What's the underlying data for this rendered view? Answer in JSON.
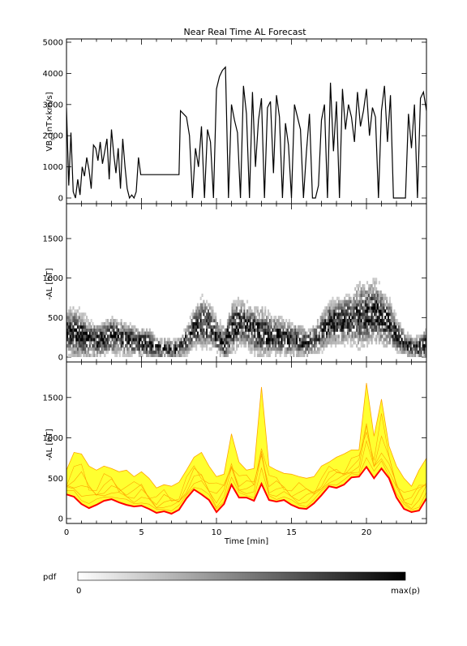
{
  "figure": {
    "title": "Near Real Time AL Forecast",
    "xlabel": "Time [min]",
    "xticks": [
      0,
      5,
      10,
      15,
      20
    ],
    "xlim": [
      0,
      24
    ],
    "colorbar": {
      "label": "pdf",
      "min_label": "0",
      "max_label": "max(p)"
    }
  },
  "chart_data": [
    {
      "type": "line",
      "panel": "top",
      "ylabel": "VB",
      "ylabel_sub": "s",
      "ylabel_unit": " [nT×km/s]",
      "ylim": [
        0,
        5000
      ],
      "yticks": [
        0,
        1000,
        2000,
        3000,
        4000,
        5000
      ],
      "series": [
        {
          "x": [
            0,
            0.15,
            0.3,
            0.45,
            0.6,
            0.75,
            0.9,
            1.05,
            1.2,
            1.35,
            1.5,
            1.65,
            1.8,
            1.95,
            2.1,
            2.25,
            2.4,
            2.55,
            2.7,
            2.85,
            3.0,
            3.15,
            3.3,
            3.45,
            3.6,
            3.75,
            3.9,
            4.05,
            4.2,
            4.35,
            4.5,
            4.65,
            4.8,
            4.95,
            5.1,
            5.25,
            5.4,
            5.55,
            5.7,
            5.85,
            6.0,
            6.5,
            7.0,
            7.5,
            7.6,
            7.8,
            8.0,
            8.2,
            8.4,
            8.6,
            8.8,
            9.0,
            9.2,
            9.4,
            9.6,
            9.8,
            10.0,
            10.2,
            10.4,
            10.6,
            10.8,
            11.0,
            11.2,
            11.4,
            11.6,
            11.8,
            12.0,
            12.2,
            12.4,
            12.6,
            12.8,
            13.0,
            13.2,
            13.4,
            13.6,
            13.8,
            14.0,
            14.2,
            14.4,
            14.6,
            14.8,
            15.0,
            15.2,
            15.4,
            15.6,
            15.8,
            16.0,
            16.2,
            16.4,
            16.6,
            16.8,
            17.0,
            17.2,
            17.4,
            17.6,
            17.8,
            18.0,
            18.2,
            18.4,
            18.6,
            18.8,
            19.0,
            19.2,
            19.4,
            19.6,
            19.8,
            20.0,
            20.2,
            20.4,
            20.6,
            20.8,
            21.0,
            21.2,
            21.4,
            21.6,
            21.8,
            22.0,
            22.2,
            22.4,
            22.6,
            22.8,
            23.0,
            23.2,
            23.4,
            23.6,
            23.8,
            24.0
          ],
          "y": [
            2900,
            400,
            2100,
            200,
            0,
            600,
            100,
            1000,
            700,
            1300,
            900,
            300,
            1700,
            1600,
            1200,
            1800,
            1100,
            1500,
            1900,
            600,
            2200,
            1400,
            800,
            1600,
            300,
            1900,
            1000,
            300,
            0,
            100,
            0,
            200,
            1300,
            750,
            750,
            750,
            750,
            750,
            750,
            750,
            750,
            750,
            750,
            750,
            2800,
            2700,
            2600,
            2000,
            0,
            1600,
            1000,
            2300,
            0,
            2200,
            1800,
            0,
            3500,
            3900,
            4100,
            4200,
            0,
            3000,
            2500,
            2100,
            0,
            3600,
            2700,
            0,
            3400,
            1000,
            2500,
            3200,
            0,
            2900,
            3100,
            800,
            3300,
            2600,
            0,
            2400,
            1700,
            0,
            3000,
            2600,
            2200,
            0,
            1500,
            2700,
            0,
            0,
            400,
            2500,
            3000,
            0,
            3700,
            1500,
            3100,
            0,
            3500,
            2200,
            3000,
            2600,
            1800,
            3400,
            2300,
            2800,
            3500,
            2000,
            2900,
            2600,
            0,
            2800,
            3600,
            1800,
            3300,
            0,
            0,
            0,
            0,
            0,
            2700,
            1600,
            3000,
            0,
            3200,
            3400,
            2800
          ]
        }
      ]
    },
    {
      "type": "heatmap",
      "panel": "middle",
      "ylabel": "-AL [nT]",
      "ylim": [
        0,
        1900
      ],
      "yticks": [
        0,
        500,
        1000,
        1500
      ],
      "x": [
        0,
        0.5,
        1,
        1.5,
        2,
        2.5,
        3,
        3.5,
        4,
        4.5,
        5,
        5.5,
        6,
        6.5,
        7,
        7.5,
        8,
        8.5,
        9,
        9.5,
        10,
        10.5,
        11,
        11.5,
        12,
        12.5,
        13,
        13.5,
        14,
        14.5,
        15,
        15.5,
        16,
        16.5,
        17,
        17.5,
        18,
        18.5,
        19,
        19.5,
        20,
        20.5,
        21,
        21.5,
        22,
        22.5,
        23,
        23.5,
        24
      ],
      "y_mode": [
        300,
        280,
        250,
        200,
        180,
        220,
        250,
        230,
        200,
        180,
        160,
        150,
        80,
        90,
        70,
        100,
        200,
        350,
        420,
        380,
        250,
        150,
        350,
        420,
        380,
        300,
        280,
        260,
        250,
        230,
        200,
        180,
        150,
        200,
        300,
        400,
        430,
        450,
        470,
        500,
        520,
        560,
        480,
        400,
        250,
        150,
        100,
        100,
        150
      ],
      "y_spread": [
        400,
        500,
        450,
        350,
        300,
        300,
        350,
        300,
        280,
        250,
        260,
        230,
        150,
        150,
        120,
        150,
        250,
        350,
        500,
        400,
        300,
        300,
        500,
        450,
        400,
        450,
        500,
        420,
        350,
        300,
        300,
        280,
        200,
        250,
        350,
        400,
        450,
        450,
        500,
        650,
        600,
        650,
        550,
        450,
        300,
        200,
        150,
        200,
        300
      ]
    },
    {
      "type": "area",
      "panel": "bottom",
      "ylabel": "-AL [nT]",
      "ylim": [
        0,
        1900
      ],
      "yticks": [
        0,
        500,
        1000,
        1500
      ],
      "x": [
        0,
        0.5,
        1,
        1.5,
        2,
        2.5,
        3,
        3.5,
        4,
        4.5,
        5,
        5.5,
        6,
        6.5,
        7,
        7.5,
        8,
        8.5,
        9,
        9.5,
        10,
        10.5,
        11,
        11.5,
        12,
        12.5,
        13,
        13.5,
        14,
        14.5,
        15,
        15.5,
        16,
        16.5,
        17,
        17.5,
        18,
        18.5,
        19,
        19.5,
        20,
        20.5,
        21,
        21.5,
        22,
        22.5,
        23,
        23.5,
        24
      ],
      "series": [
        {
          "name": "lower",
          "values": [
            300,
            270,
            180,
            130,
            170,
            220,
            240,
            200,
            170,
            150,
            160,
            120,
            70,
            90,
            60,
            110,
            250,
            360,
            300,
            230,
            80,
            180,
            420,
            260,
            260,
            220,
            430,
            230,
            210,
            230,
            170,
            130,
            120,
            190,
            290,
            400,
            380,
            420,
            510,
            520,
            640,
            500,
            620,
            500,
            260,
            120,
            80,
            100,
            250
          ]
        },
        {
          "name": "upper",
          "values": [
            600,
            820,
            800,
            650,
            600,
            650,
            620,
            580,
            600,
            520,
            580,
            500,
            380,
            420,
            400,
            450,
            600,
            760,
            820,
            650,
            520,
            550,
            1050,
            700,
            600,
            620,
            1630,
            650,
            600,
            560,
            550,
            520,
            500,
            520,
            650,
            700,
            760,
            800,
            850,
            850,
            1680,
            1020,
            1480,
            900,
            650,
            500,
            400,
            600,
            750
          ]
        }
      ]
    }
  ],
  "colors": {
    "heat": "#000000",
    "envelope_fill": "#ffff30",
    "envelope_edge": "#ffa500",
    "forecast_line": "#ff0000"
  }
}
